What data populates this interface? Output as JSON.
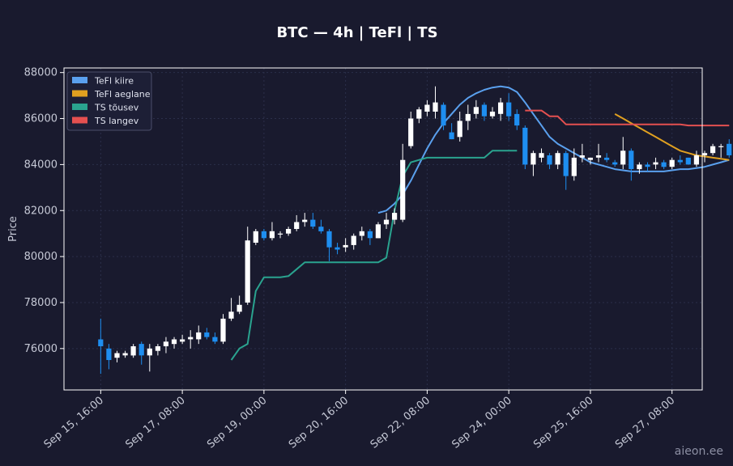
{
  "chart_data": {
    "type": "candlestick",
    "title": "BTC — 4h  |  TeFl  |  TS",
    "xlabel": "",
    "ylabel": "Price",
    "ylim": [
      74200,
      88200
    ],
    "yticks": [
      76000,
      78000,
      80000,
      82000,
      84000,
      86000,
      88000
    ],
    "ytick_labels": [
      "76000",
      "78000",
      "80000",
      "82000",
      "84000",
      "86000",
      "88000"
    ],
    "xticks": [
      0,
      10,
      20,
      30,
      40,
      50,
      60,
      70
    ],
    "xtick_labels": [
      "Sep 15, 16:00",
      "Sep 17, 08:00",
      "Sep 19, 00:00",
      "Sep 20, 16:00",
      "Sep 22, 08:00",
      "Sep 24, 00:00",
      "Sep 25, 16:00",
      "Sep 27, 08:00"
    ],
    "xlim": [
      -4.5,
      73.7
    ],
    "grid": true,
    "legend_position": "top-left",
    "colors": {
      "up_candle": "#ffffff",
      "down_candle": "#1e8ef0",
      "background": "#191a2e",
      "axes_border": "#ffffff",
      "grid": "#2b2f4a"
    },
    "candles": [
      [
        0,
        76400,
        77300,
        74900,
        76100
      ],
      [
        1,
        76000,
        76200,
        75100,
        75500
      ],
      [
        2,
        75600,
        75900,
        75400,
        75800
      ],
      [
        3,
        75700,
        75900,
        75600,
        75800
      ],
      [
        4,
        75700,
        76200,
        75600,
        76100
      ],
      [
        5,
        76200,
        76300,
        75300,
        75700
      ],
      [
        6,
        75700,
        76200,
        75000,
        76000
      ],
      [
        7,
        75900,
        76200,
        75700,
        76100
      ],
      [
        8,
        76100,
        76500,
        75800,
        76300
      ],
      [
        9,
        76200,
        76500,
        76000,
        76400
      ],
      [
        10,
        76300,
        76600,
        76200,
        76400
      ],
      [
        11,
        76400,
        76800,
        76000,
        76500
      ],
      [
        12,
        76400,
        77000,
        76200,
        76700
      ],
      [
        13,
        76700,
        76900,
        76400,
        76500
      ],
      [
        14,
        76500,
        76700,
        76200,
        76300
      ],
      [
        15,
        76300,
        77500,
        76200,
        77300
      ],
      [
        16,
        77300,
        78200,
        77200,
        77600
      ],
      [
        17,
        77600,
        78300,
        77500,
        77900
      ],
      [
        18,
        78000,
        81300,
        77900,
        80700
      ],
      [
        19,
        80600,
        81200,
        80500,
        81100
      ],
      [
        20,
        81100,
        81200,
        80700,
        80800
      ],
      [
        21,
        80800,
        81500,
        80700,
        81100
      ],
      [
        22,
        81000,
        81100,
        80800,
        81000
      ],
      [
        23,
        81000,
        81300,
        80900,
        81200
      ],
      [
        24,
        81200,
        81800,
        81100,
        81500
      ],
      [
        25,
        81500,
        81900,
        81300,
        81600
      ],
      [
        26,
        81600,
        81900,
        81200,
        81300
      ],
      [
        27,
        81300,
        81600,
        81000,
        81100
      ],
      [
        28,
        81100,
        81200,
        79800,
        80400
      ],
      [
        29,
        80400,
        80600,
        80100,
        80300
      ],
      [
        30,
        80400,
        80800,
        80200,
        80500
      ],
      [
        31,
        80500,
        81000,
        80300,
        80900
      ],
      [
        32,
        80900,
        81300,
        80700,
        81100
      ],
      [
        33,
        81100,
        81200,
        80500,
        80800
      ],
      [
        34,
        80800,
        81500,
        80800,
        81400
      ],
      [
        35,
        81400,
        81900,
        81200,
        81600
      ],
      [
        36,
        81600,
        82100,
        81400,
        81900
      ],
      [
        37,
        81600,
        84900,
        81500,
        84200
      ],
      [
        38,
        84800,
        86300,
        84700,
        86000
      ],
      [
        39,
        86000,
        86500,
        85800,
        86400
      ],
      [
        40,
        86300,
        86800,
        86100,
        86600
      ],
      [
        41,
        86300,
        87400,
        86000,
        86700
      ],
      [
        42,
        86600,
        86700,
        85500,
        85700
      ],
      [
        43,
        85400,
        85800,
        85100,
        85100
      ],
      [
        44,
        85200,
        86300,
        85000,
        85900
      ],
      [
        45,
        85900,
        86600,
        85500,
        86200
      ],
      [
        46,
        86200,
        86800,
        86000,
        86500
      ],
      [
        47,
        86600,
        86700,
        85900,
        86100
      ],
      [
        48,
        86100,
        86500,
        86000,
        86300
      ],
      [
        49,
        86200,
        86900,
        85900,
        86700
      ],
      [
        50,
        86700,
        87100,
        85900,
        86100
      ],
      [
        51,
        86200,
        86400,
        85500,
        85700
      ],
      [
        52,
        85600,
        85700,
        83800,
        84000
      ],
      [
        53,
        84000,
        84600,
        83500,
        84500
      ],
      [
        54,
        84300,
        84700,
        84100,
        84500
      ],
      [
        55,
        84400,
        84500,
        83800,
        84000
      ],
      [
        56,
        84000,
        84600,
        83800,
        84500
      ],
      [
        57,
        84500,
        84600,
        82900,
        83500
      ],
      [
        58,
        83500,
        84700,
        83300,
        84300
      ],
      [
        59,
        84300,
        84900,
        84100,
        84400
      ],
      [
        60,
        84200,
        84300,
        84000,
        84300
      ],
      [
        61,
        84300,
        84900,
        84100,
        84400
      ],
      [
        62,
        84300,
        84500,
        84100,
        84200
      ],
      [
        63,
        84100,
        84200,
        83900,
        84000
      ],
      [
        64,
        84000,
        85200,
        83800,
        84600
      ],
      [
        65,
        84600,
        84700,
        83300,
        83800
      ],
      [
        66,
        83800,
        84100,
        83600,
        84000
      ],
      [
        67,
        84000,
        84100,
        83700,
        83900
      ],
      [
        68,
        84000,
        84300,
        83800,
        84100
      ],
      [
        69,
        84100,
        84200,
        83800,
        83900
      ],
      [
        70,
        83900,
        84300,
        83800,
        84200
      ],
      [
        71,
        84200,
        84400,
        84000,
        84100
      ],
      [
        72,
        84300,
        84300,
        84000,
        84000
      ],
      [
        73,
        84000,
        84600,
        83900,
        84400
      ],
      [
        74,
        84400,
        84600,
        84100,
        84500
      ],
      [
        75,
        84500,
        84900,
        84400,
        84800
      ],
      [
        76,
        84800,
        84900,
        84300,
        84800
      ],
      [
        77,
        84900,
        85100,
        84300,
        84400
      ]
    ],
    "series": [
      {
        "name": "TeFl kiire",
        "type": "line",
        "color": "#5aa0ee",
        "x": [
          34,
          35,
          36,
          37,
          38,
          39,
          40,
          41,
          42,
          43,
          44,
          45,
          46,
          47,
          48,
          49,
          50,
          51,
          52,
          53,
          54,
          55,
          56,
          57,
          58,
          59,
          60,
          61,
          62,
          63,
          64,
          65,
          66,
          67,
          68,
          69,
          70,
          71,
          72,
          73,
          74,
          75,
          76,
          77
        ],
        "y": [
          81900,
          82000,
          82300,
          82700,
          83300,
          84000,
          84700,
          85300,
          85800,
          86200,
          86600,
          86900,
          87100,
          87250,
          87350,
          87400,
          87350,
          87150,
          86700,
          86200,
          85700,
          85200,
          84900,
          84700,
          84500,
          84300,
          84100,
          84000,
          83900,
          83800,
          83750,
          83700,
          83700,
          83700,
          83700,
          83700,
          83750,
          83800,
          83800,
          83850,
          83900,
          84000,
          84100,
          84200
        ]
      },
      {
        "name": "TeFl aeglane",
        "type": "line",
        "color": "#e0a020",
        "x": [
          63,
          64,
          65,
          66,
          67,
          68,
          69,
          70,
          71,
          72,
          73,
          74,
          75,
          76,
          77
        ],
        "y": [
          86200,
          86000,
          85800,
          85600,
          85400,
          85200,
          85000,
          84800,
          84600,
          84500,
          84400,
          84350,
          84300,
          84250,
          84200
        ]
      },
      {
        "name": "TS tõusev",
        "type": "line",
        "color": "#2aa38f",
        "x": [
          16,
          17,
          18,
          19,
          20,
          21,
          22,
          23,
          24,
          25,
          26,
          27,
          28,
          29,
          30,
          31,
          32,
          33,
          34,
          35,
          36,
          37,
          38,
          39,
          40,
          41,
          42,
          43,
          44,
          45,
          46,
          47,
          48,
          49,
          50,
          51
        ],
        "y": [
          75500,
          76000,
          76200,
          78500,
          79100,
          79100,
          79100,
          79150,
          79450,
          79750,
          79750,
          79750,
          79750,
          79750,
          79750,
          79750,
          79750,
          79750,
          79750,
          79950,
          82000,
          83500,
          84100,
          84200,
          84300,
          84300,
          84300,
          84300,
          84300,
          84300,
          84300,
          84300,
          84600,
          84600,
          84600,
          84600
        ]
      },
      {
        "name": "TS langev",
        "type": "line",
        "color": "#e45050",
        "x": [
          52,
          53,
          54,
          55,
          56,
          57,
          58,
          59,
          60,
          61,
          62,
          63,
          64,
          65,
          66,
          67,
          68,
          69,
          70,
          71,
          72,
          73,
          74,
          75,
          76,
          77
        ],
        "y": [
          86350,
          86350,
          86350,
          86100,
          86100,
          85750,
          85750,
          85750,
          85750,
          85750,
          85750,
          85750,
          85750,
          85750,
          85750,
          85750,
          85750,
          85750,
          85750,
          85750,
          85700,
          85700,
          85700,
          85700,
          85700,
          85700
        ]
      }
    ]
  },
  "watermark": "aieon.ee"
}
